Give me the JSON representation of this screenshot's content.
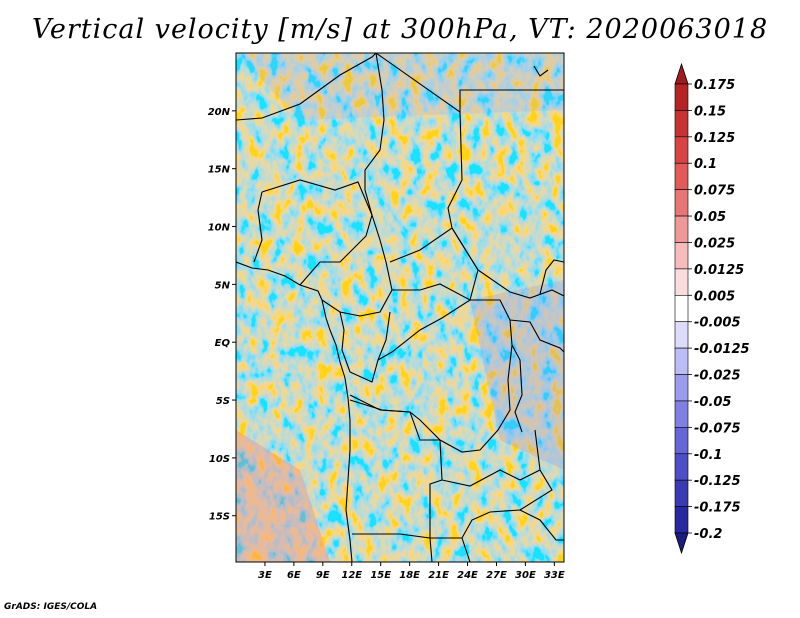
{
  "title": "Vertical velocity [m/s] at 300hPa, VT: 2020063018",
  "footer": "GrADS: IGES/COLA",
  "chart_data": {
    "type": "heatmap",
    "title": "Vertical velocity [m/s] at 300hPa, VT: 2020063018",
    "variable": "Vertical velocity",
    "units": "m/s",
    "level": "300hPa",
    "valid_time": "2020063018",
    "x_range": [
      0,
      34
    ],
    "y_range": [
      -19,
      25
    ],
    "x_ticks": [
      {
        "value": 3,
        "label": "3E"
      },
      {
        "value": 6,
        "label": "6E"
      },
      {
        "value": 9,
        "label": "9E"
      },
      {
        "value": 12,
        "label": "12E"
      },
      {
        "value": 15,
        "label": "15E"
      },
      {
        "value": 18,
        "label": "18E"
      },
      {
        "value": 21,
        "label": "21E"
      },
      {
        "value": 24,
        "label": "24E"
      },
      {
        "value": 27,
        "label": "27E"
      },
      {
        "value": 30,
        "label": "30E"
      },
      {
        "value": 33,
        "label": "33E"
      }
    ],
    "y_ticks": [
      {
        "value": 20,
        "label": "20N"
      },
      {
        "value": 15,
        "label": "15N"
      },
      {
        "value": 10,
        "label": "10N"
      },
      {
        "value": 5,
        "label": "5N"
      },
      {
        "value": 0,
        "label": "EQ"
      },
      {
        "value": -5,
        "label": "5S"
      },
      {
        "value": -10,
        "label": "10S"
      },
      {
        "value": -15,
        "label": "15S"
      }
    ],
    "colorbar": {
      "labels": [
        "0.175",
        "0.15",
        "0.125",
        "0.1",
        "0.075",
        "0.05",
        "0.025",
        "0.0125",
        "0.005",
        "-0.005",
        "-0.0125",
        "-0.025",
        "-0.05",
        "-0.075",
        "-0.1",
        "-0.125",
        "-0.175",
        "-0.2"
      ],
      "colors": [
        "#a01c1c",
        "#b42424",
        "#c83232",
        "#d84444",
        "#e25a5a",
        "#e87676",
        "#f09898",
        "#f6bcbc",
        "#fadcdc",
        "#ffffff",
        "#dcdcfa",
        "#bcbcf6",
        "#9c9cee",
        "#8080e4",
        "#6666d8",
        "#4e4ec8",
        "#3a3ab4",
        "#2828a0",
        "#1c1c7e"
      ],
      "extend": "both"
    }
  }
}
